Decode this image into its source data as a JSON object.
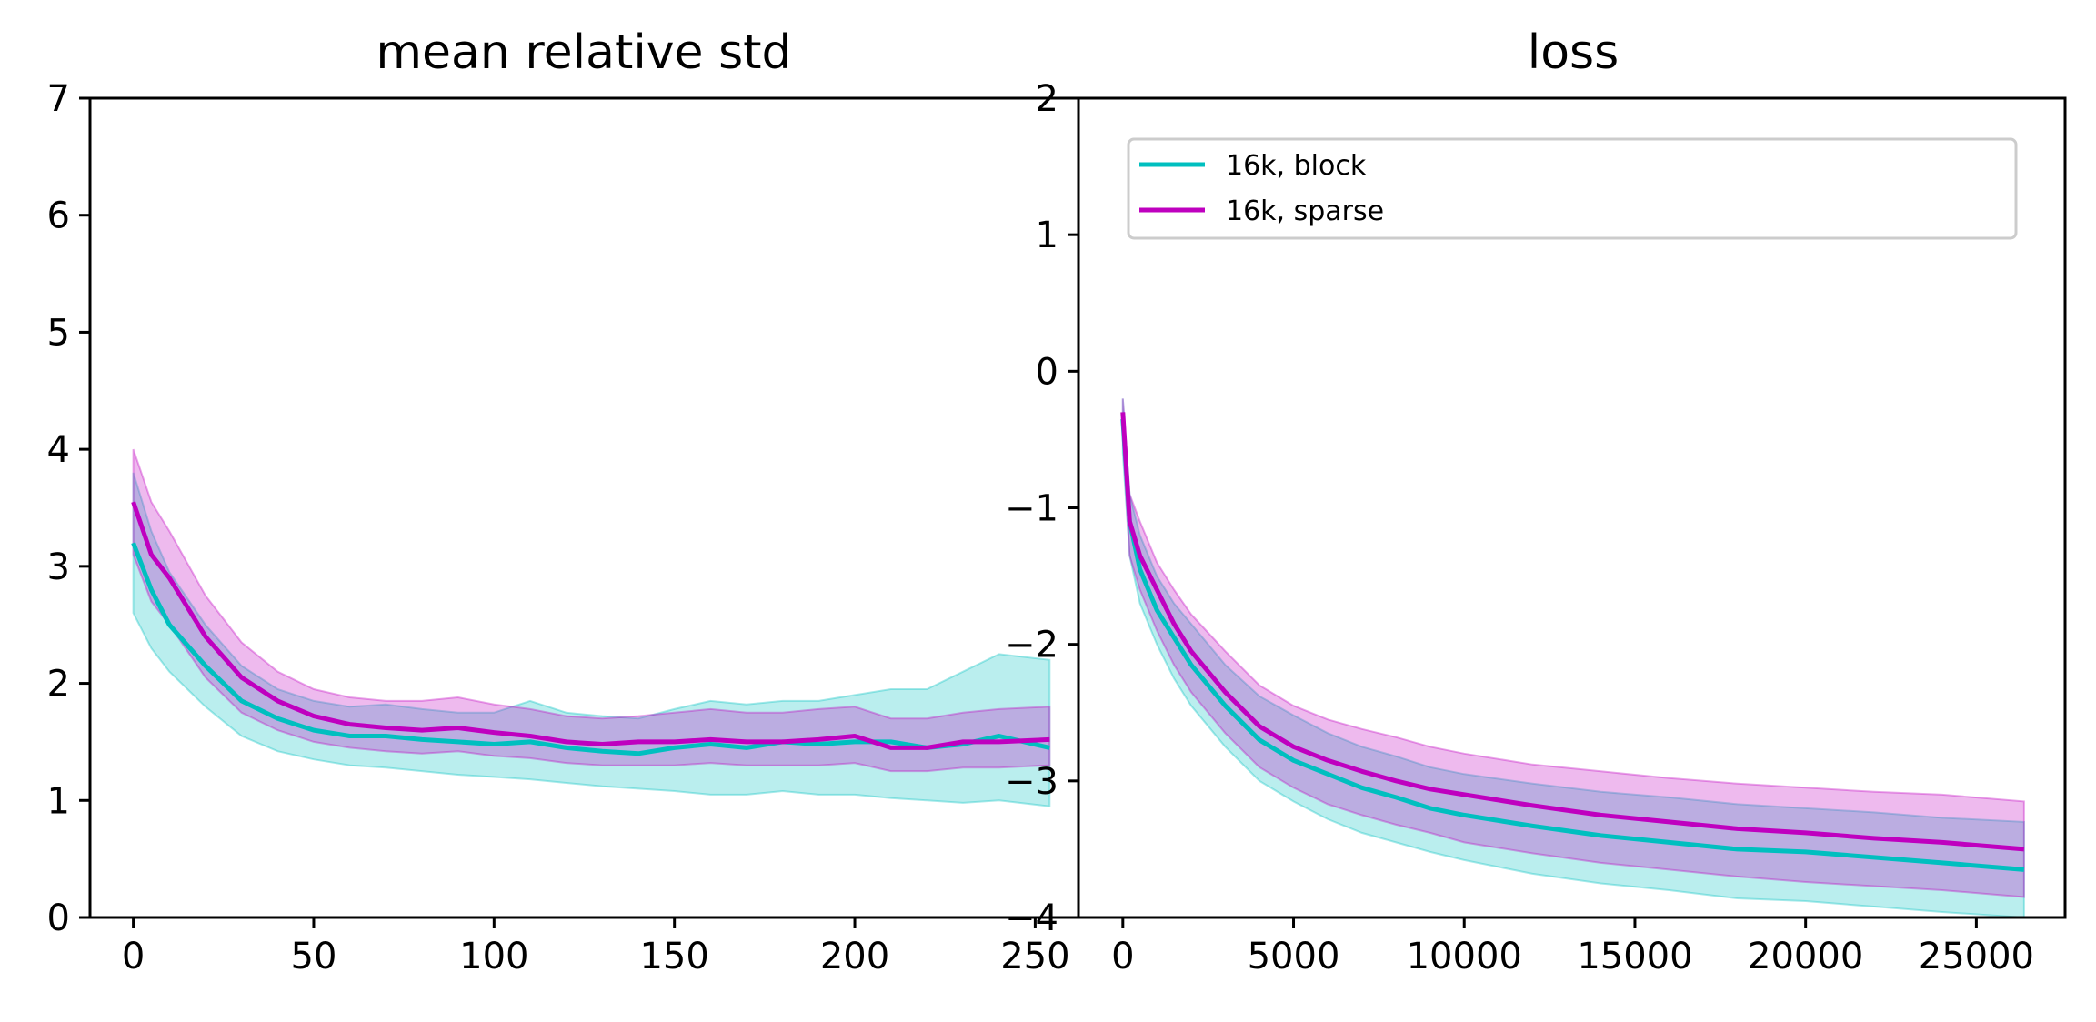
{
  "chart_data": [
    {
      "type": "line",
      "title": "mean relative std",
      "xlabel": "",
      "ylabel": "",
      "xlim": [
        -12,
        262
      ],
      "ylim": [
        0,
        7
      ],
      "x_ticks": [
        0,
        50,
        100,
        150,
        200,
        250
      ],
      "x_tick_labels": [
        "0",
        "50",
        "100",
        "150",
        "200",
        "250"
      ],
      "y_ticks": [
        0,
        1,
        2,
        3,
        4,
        5,
        6,
        7
      ],
      "y_tick_labels": [
        "0",
        "1",
        "2",
        "3",
        "4",
        "5",
        "6",
        "7"
      ],
      "grid": false,
      "x": [
        0,
        5,
        10,
        20,
        30,
        40,
        50,
        60,
        70,
        80,
        90,
        100,
        110,
        120,
        130,
        140,
        150,
        160,
        170,
        180,
        190,
        200,
        210,
        220,
        230,
        240,
        254
      ],
      "series": [
        {
          "name": "16k, block",
          "color": "#00bfbf",
          "values": [
            3.2,
            2.8,
            2.5,
            2.15,
            1.85,
            1.7,
            1.6,
            1.55,
            1.55,
            1.52,
            1.5,
            1.48,
            1.5,
            1.45,
            1.42,
            1.4,
            1.45,
            1.48,
            1.45,
            1.5,
            1.48,
            1.5,
            1.5,
            1.45,
            1.48,
            1.55,
            1.45
          ],
          "lower": [
            2.6,
            2.3,
            2.1,
            1.8,
            1.55,
            1.42,
            1.35,
            1.3,
            1.28,
            1.25,
            1.22,
            1.2,
            1.18,
            1.15,
            1.12,
            1.1,
            1.08,
            1.05,
            1.05,
            1.08,
            1.05,
            1.05,
            1.02,
            1.0,
            0.98,
            1.0,
            0.95
          ],
          "upper": [
            3.8,
            3.3,
            2.95,
            2.5,
            2.15,
            1.95,
            1.85,
            1.8,
            1.82,
            1.78,
            1.75,
            1.75,
            1.85,
            1.75,
            1.72,
            1.7,
            1.78,
            1.85,
            1.82,
            1.85,
            1.85,
            1.9,
            1.95,
            1.95,
            2.1,
            2.25,
            2.2
          ]
        },
        {
          "name": "16k, sparse",
          "color": "#bf00bf",
          "values": [
            3.55,
            3.1,
            2.9,
            2.4,
            2.05,
            1.85,
            1.72,
            1.65,
            1.62,
            1.6,
            1.62,
            1.58,
            1.55,
            1.5,
            1.48,
            1.5,
            1.5,
            1.52,
            1.5,
            1.5,
            1.52,
            1.55,
            1.45,
            1.45,
            1.5,
            1.5,
            1.52
          ],
          "lower": [
            3.1,
            2.7,
            2.5,
            2.05,
            1.75,
            1.6,
            1.5,
            1.45,
            1.42,
            1.4,
            1.42,
            1.38,
            1.36,
            1.32,
            1.3,
            1.3,
            1.3,
            1.32,
            1.3,
            1.3,
            1.3,
            1.32,
            1.25,
            1.25,
            1.28,
            1.28,
            1.3
          ],
          "upper": [
            4.0,
            3.55,
            3.3,
            2.75,
            2.35,
            2.1,
            1.95,
            1.88,
            1.85,
            1.85,
            1.88,
            1.82,
            1.78,
            1.72,
            1.7,
            1.72,
            1.75,
            1.78,
            1.75,
            1.75,
            1.78,
            1.8,
            1.7,
            1.7,
            1.75,
            1.78,
            1.8
          ]
        }
      ]
    },
    {
      "type": "line",
      "title": "loss",
      "xlabel": "",
      "ylabel": "",
      "xlim": [
        -1300,
        27600
      ],
      "ylim": [
        -4,
        2
      ],
      "x_ticks": [
        0,
        5000,
        10000,
        15000,
        20000,
        25000
      ],
      "x_tick_labels": [
        "0",
        "5000",
        "10000",
        "15000",
        "20000",
        "25000"
      ],
      "y_ticks": [
        -4,
        -3,
        -2,
        -1,
        0,
        1,
        2
      ],
      "y_tick_labels": [
        "−4",
        "−3",
        "−2",
        "−1",
        "0",
        "1",
        "2"
      ],
      "grid": false,
      "legend": {
        "placement": "top",
        "entries": [
          "16k, block",
          "16k, sparse"
        ]
      },
      "x": [
        0,
        200,
        500,
        1000,
        1500,
        2000,
        3000,
        4000,
        5000,
        6000,
        7000,
        8000,
        9000,
        10000,
        12000,
        14000,
        16000,
        18000,
        20000,
        22000,
        24000,
        26400
      ],
      "series": [
        {
          "name": "16k, block",
          "color": "#00bfbf",
          "values": [
            -0.35,
            -1.1,
            -1.45,
            -1.75,
            -1.95,
            -2.15,
            -2.45,
            -2.7,
            -2.85,
            -2.95,
            -3.05,
            -3.12,
            -3.2,
            -3.25,
            -3.33,
            -3.4,
            -3.45,
            -3.5,
            -3.52,
            -3.56,
            -3.6,
            -3.65
          ],
          "lower": [
            -0.6,
            -1.35,
            -1.7,
            -2.0,
            -2.25,
            -2.45,
            -2.75,
            -3.0,
            -3.15,
            -3.28,
            -3.38,
            -3.45,
            -3.52,
            -3.58,
            -3.68,
            -3.75,
            -3.8,
            -3.86,
            -3.88,
            -3.92,
            -3.96,
            -4.0
          ],
          "upper": [
            -0.2,
            -0.9,
            -1.2,
            -1.5,
            -1.7,
            -1.85,
            -2.15,
            -2.38,
            -2.52,
            -2.65,
            -2.75,
            -2.82,
            -2.9,
            -2.95,
            -3.02,
            -3.08,
            -3.12,
            -3.17,
            -3.2,
            -3.23,
            -3.27,
            -3.3
          ]
        },
        {
          "name": "16k, sparse",
          "color": "#bf00bf",
          "values": [
            -0.3,
            -1.1,
            -1.35,
            -1.6,
            -1.85,
            -2.05,
            -2.35,
            -2.6,
            -2.75,
            -2.85,
            -2.93,
            -3.0,
            -3.06,
            -3.1,
            -3.18,
            -3.25,
            -3.3,
            -3.35,
            -3.38,
            -3.42,
            -3.45,
            -3.5
          ],
          "lower": [
            -0.5,
            -1.35,
            -1.6,
            -1.9,
            -2.15,
            -2.35,
            -2.65,
            -2.9,
            -3.05,
            -3.17,
            -3.25,
            -3.32,
            -3.38,
            -3.45,
            -3.53,
            -3.6,
            -3.65,
            -3.7,
            -3.74,
            -3.77,
            -3.8,
            -3.85
          ],
          "upper": [
            -0.2,
            -0.9,
            -1.1,
            -1.4,
            -1.6,
            -1.78,
            -2.05,
            -2.3,
            -2.45,
            -2.55,
            -2.62,
            -2.68,
            -2.75,
            -2.8,
            -2.88,
            -2.93,
            -2.98,
            -3.02,
            -3.05,
            -3.08,
            -3.1,
            -3.15
          ]
        }
      ]
    }
  ]
}
